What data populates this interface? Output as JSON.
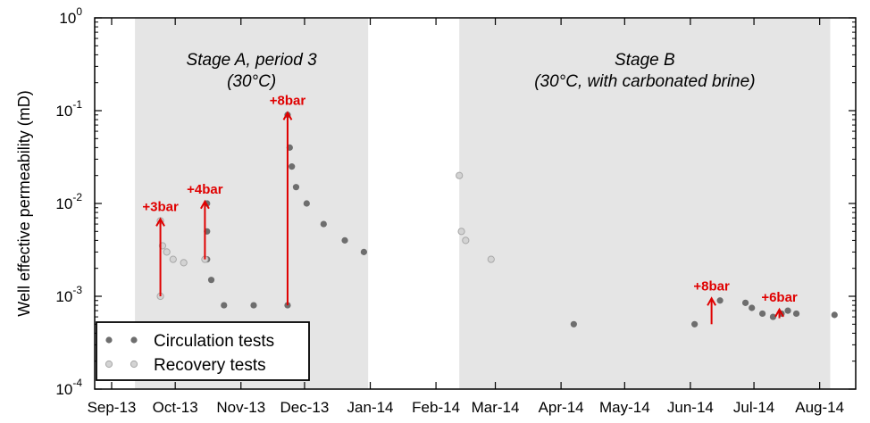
{
  "chart_data": {
    "type": "scatter",
    "title": "",
    "xlabel": "",
    "ylabel": "Well effective permeability (mD)",
    "yscale": "log",
    "ylim": [
      0.0001,
      1
    ],
    "y_tick_labels": [
      {
        "value": 0.0001,
        "base": "10",
        "exp": "-4"
      },
      {
        "value": 0.001,
        "base": "10",
        "exp": "-3"
      },
      {
        "value": 0.01,
        "base": "10",
        "exp": "-2"
      },
      {
        "value": 0.1,
        "base": "10",
        "exp": "-1"
      },
      {
        "value": 1,
        "base": "10",
        "exp": "0"
      }
    ],
    "xlim": [
      "2013-08-24",
      "2014-08-18"
    ],
    "x_tick_labels": [
      {
        "date": "2013-09-01",
        "label": "Sep-13"
      },
      {
        "date": "2013-10-01",
        "label": "Oct-13"
      },
      {
        "date": "2013-11-01",
        "label": "Nov-13"
      },
      {
        "date": "2013-12-01",
        "label": "Dec-13"
      },
      {
        "date": "2014-01-01",
        "label": "Jan-14"
      },
      {
        "date": "2014-02-01",
        "label": "Feb-14"
      },
      {
        "date": "2014-03-01",
        "label": "Mar-14"
      },
      {
        "date": "2014-04-01",
        "label": "Apr-14"
      },
      {
        "date": "2014-05-01",
        "label": "May-14"
      },
      {
        "date": "2014-06-01",
        "label": "Jun-14"
      },
      {
        "date": "2014-07-01",
        "label": "Jul-14"
      },
      {
        "date": "2014-08-01",
        "label": "Aug-14"
      }
    ],
    "grid": false,
    "legend_position": "bottom-left",
    "shaded_regions": [
      {
        "start": "2013-09-12",
        "end": "2013-12-31",
        "color": "#e5e5e5",
        "label_line1": "Stage A, period 3",
        "label_line2": "(30°C)"
      },
      {
        "start": "2014-02-12",
        "end": "2014-08-06",
        "color": "#e5e5e5",
        "label_line1": "Stage B",
        "label_line2": "(30°C, with carbonated brine)"
      }
    ],
    "series": [
      {
        "name": "Circulation tests",
        "color": "#6e6e6e",
        "points": [
          {
            "x": "2013-10-16",
            "y": 0.01
          },
          {
            "x": "2013-10-16",
            "y": 0.005
          },
          {
            "x": "2013-10-16",
            "y": 0.0025
          },
          {
            "x": "2013-10-18",
            "y": 0.0015
          },
          {
            "x": "2013-10-24",
            "y": 0.0008
          },
          {
            "x": "2013-11-07",
            "y": 0.0008
          },
          {
            "x": "2013-11-23",
            "y": 0.0008
          },
          {
            "x": "2013-11-23",
            "y": 0.09
          },
          {
            "x": "2013-11-24",
            "y": 0.04
          },
          {
            "x": "2013-11-25",
            "y": 0.025
          },
          {
            "x": "2013-11-27",
            "y": 0.015
          },
          {
            "x": "2013-12-02",
            "y": 0.01
          },
          {
            "x": "2013-12-10",
            "y": 0.006
          },
          {
            "x": "2013-12-20",
            "y": 0.004
          },
          {
            "x": "2013-12-29",
            "y": 0.003
          },
          {
            "x": "2014-04-07",
            "y": 0.0005
          },
          {
            "x": "2014-06-03",
            "y": 0.0005
          },
          {
            "x": "2014-06-15",
            "y": 0.0009
          },
          {
            "x": "2014-06-27",
            "y": 0.00085
          },
          {
            "x": "2014-06-30",
            "y": 0.00075
          },
          {
            "x": "2014-07-05",
            "y": 0.00065
          },
          {
            "x": "2014-07-10",
            "y": 0.0006
          },
          {
            "x": "2014-07-14",
            "y": 0.00065
          },
          {
            "x": "2014-07-17",
            "y": 0.0007
          },
          {
            "x": "2014-07-21",
            "y": 0.00065
          },
          {
            "x": "2014-08-08",
            "y": 0.00063
          }
        ]
      },
      {
        "name": "Recovery tests",
        "color": "#d3d3d3",
        "points": [
          {
            "x": "2013-09-24",
            "y": 0.001
          },
          {
            "x": "2013-09-24",
            "y": 0.0065
          },
          {
            "x": "2013-09-25",
            "y": 0.0035
          },
          {
            "x": "2013-09-27",
            "y": 0.003
          },
          {
            "x": "2013-09-30",
            "y": 0.0025
          },
          {
            "x": "2013-10-05",
            "y": 0.0023
          },
          {
            "x": "2013-10-15",
            "y": 0.0025
          },
          {
            "x": "2014-02-12",
            "y": 0.02
          },
          {
            "x": "2014-02-13",
            "y": 0.005
          },
          {
            "x": "2014-02-15",
            "y": 0.004
          },
          {
            "x": "2014-02-27",
            "y": 0.0025
          }
        ]
      }
    ],
    "annotations": [
      {
        "label": "+3bar",
        "x": "2013-09-24",
        "from_y": 0.001,
        "to_y": 0.0068
      },
      {
        "label": "+4bar",
        "x": "2013-10-15",
        "from_y": 0.0025,
        "to_y": 0.0105
      },
      {
        "label": "+8bar",
        "x": "2013-11-23",
        "from_y": 0.0008,
        "to_y": 0.095
      },
      {
        "label": "+8bar",
        "x": "2014-06-11",
        "from_y": 0.0005,
        "to_y": 0.00095
      },
      {
        "label": "+6bar",
        "x": "2014-07-13",
        "from_y": 0.00058,
        "to_y": 0.00072
      }
    ]
  }
}
